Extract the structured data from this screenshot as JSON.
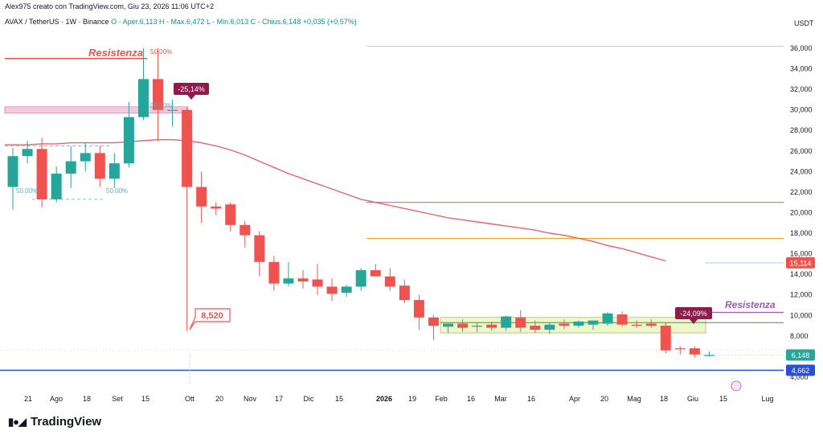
{
  "header": {
    "author": "Alex975 creato con TradingView.com, Giu 23, 2026 11:06 UTC+2",
    "symbol": "AVAX / TetherUS · 1W · Binance",
    "ohlc": "O - Aper.6,113  H - Max.6,472  L - Min.6,013  C - Chius.6,148  +0,035 (+0,57%)"
  },
  "brand": {
    "name": "TradingView",
    "logo_icon": "tradingview-logo-icon"
  },
  "colors": {
    "up": "#26a69a",
    "down": "#ef5350",
    "ma": "#e5646a",
    "orange": "#f5a623",
    "blue": "#2a4fd6",
    "purple": "#a155b9",
    "zone": "#eef7c9"
  },
  "chart_data": {
    "type": "candlestick",
    "y_unit": "USDT",
    "ylim": [
      3600,
      37000
    ],
    "y_ticks": [
      "4,000",
      "6,000",
      "8,000",
      "10,000",
      "12,000",
      "14,000",
      "16,000",
      "18,000",
      "20,000",
      "22,000",
      "24,000",
      "26,000",
      "28,000",
      "30,000",
      "32,000",
      "34,000",
      "36,000"
    ],
    "x_labels": [
      "21",
      "Ago",
      "18",
      "Set",
      "15",
      "Ott",
      "20",
      "Nov",
      "17",
      "Dic",
      "15",
      "2026",
      "19",
      "Feb",
      "16",
      "Mar",
      "16",
      "Apr",
      "20",
      "Mag",
      "18",
      "Giu",
      "15",
      "Lug"
    ],
    "bold_x_label": "2026",
    "candles": [
      [
        22.5,
        26.3,
        20.3,
        25.5
      ],
      [
        25.5,
        27.0,
        24.8,
        26.2
      ],
      [
        26.2,
        27.3,
        20.5,
        21.3
      ],
      [
        21.3,
        24.5,
        21.0,
        23.8
      ],
      [
        23.8,
        26.5,
        22.4,
        25.0
      ],
      [
        25.0,
        26.8,
        24.0,
        25.8
      ],
      [
        25.8,
        26.5,
        22.5,
        23.3
      ],
      [
        23.3,
        25.8,
        22.4,
        24.8
      ],
      [
        24.8,
        30.8,
        24.4,
        29.3
      ],
      [
        29.3,
        36.0,
        29.0,
        33.0
      ],
      [
        33.0,
        36.0,
        27.0,
        30.0
      ],
      [
        30.0,
        31.0,
        28.4,
        30.0
      ],
      [
        30.0,
        30.2,
        8.5,
        22.5
      ],
      [
        22.5,
        24.0,
        19.0,
        20.6
      ],
      [
        20.6,
        21.0,
        19.8,
        20.4
      ],
      [
        20.8,
        21.0,
        18.2,
        18.8
      ],
      [
        18.8,
        19.2,
        16.6,
        17.8
      ],
      [
        17.8,
        18.2,
        13.8,
        15.2
      ],
      [
        15.2,
        15.8,
        12.4,
        13.1
      ],
      [
        13.1,
        15.2,
        12.8,
        13.6
      ],
      [
        13.6,
        14.4,
        12.6,
        13.3
      ],
      [
        13.5,
        15.0,
        12.0,
        12.8
      ],
      [
        12.8,
        13.6,
        11.4,
        12.1
      ],
      [
        12.2,
        13.0,
        11.8,
        12.8
      ],
      [
        12.8,
        14.6,
        12.4,
        14.4
      ],
      [
        14.4,
        15.0,
        13.8,
        13.8
      ],
      [
        13.8,
        14.6,
        12.4,
        12.8
      ],
      [
        12.9,
        13.5,
        11.2,
        11.5
      ],
      [
        11.5,
        12.0,
        8.6,
        9.8
      ],
      [
        9.8,
        10.0,
        7.6,
        9.0
      ],
      [
        8.9,
        9.2,
        8.3,
        9.2
      ],
      [
        9.2,
        9.6,
        8.4,
        8.8
      ],
      [
        8.9,
        9.3,
        8.4,
        9.0
      ],
      [
        9.1,
        9.4,
        8.5,
        8.8
      ],
      [
        8.8,
        10.0,
        8.5,
        9.9
      ],
      [
        9.8,
        10.5,
        8.4,
        8.8
      ],
      [
        9.0,
        9.5,
        8.3,
        8.6
      ],
      [
        8.6,
        9.3,
        8.2,
        9.1
      ],
      [
        9.2,
        9.6,
        8.7,
        9.0
      ],
      [
        9.0,
        9.5,
        8.8,
        9.4
      ],
      [
        9.1,
        9.5,
        8.6,
        9.5
      ],
      [
        9.2,
        10.3,
        9.0,
        10.2
      ],
      [
        10.1,
        10.4,
        8.9,
        9.1
      ],
      [
        9.1,
        9.5,
        8.8,
        9.0
      ],
      [
        9.2,
        9.6,
        8.8,
        9.0
      ],
      [
        9.0,
        9.3,
        6.3,
        6.6
      ],
      [
        6.8,
        7.0,
        6.2,
        6.7
      ],
      [
        6.8,
        7.0,
        5.9,
        6.2
      ],
      [
        6.113,
        6.472,
        6.013,
        6.148
      ]
    ],
    "ma_series": [
      26.6,
      26.6,
      26.7,
      26.7,
      26.8,
      26.8,
      26.8,
      26.8,
      26.9,
      27.0,
      27.1,
      27.1,
      27.0,
      26.8,
      26.5,
      26.1,
      25.6,
      25.0,
      24.4,
      23.8,
      23.3,
      22.8,
      22.3,
      21.8,
      21.3,
      21.0,
      20.7,
      20.4,
      20.1,
      19.8,
      19.5,
      19.3,
      19.1,
      18.9,
      18.7,
      18.5,
      18.3,
      18.0,
      17.8,
      17.5,
      17.2,
      16.8,
      16.5,
      16.1,
      15.7,
      15.3
    ],
    "levels": [
      {
        "value": 36.2,
        "color": "#b9c9d6",
        "label": ""
      },
      {
        "value": 21.0,
        "color": "#e5646a",
        "label": ""
      },
      {
        "value": 17.5,
        "color": "#f5a623",
        "label": ""
      },
      {
        "value": 10.3,
        "color": "#a155b9",
        "label": ""
      },
      {
        "value": 9.3,
        "color": "#2e9e4a",
        "label": ""
      },
      {
        "value": 4.662,
        "color": "#2a4fd6",
        "label": "4,662"
      }
    ],
    "price_tags": [
      {
        "value": 15.114,
        "label": "15,114",
        "color": "#ef5350"
      },
      {
        "value": 6.148,
        "label": "6,148",
        "color": "#26a69a"
      },
      {
        "value": 4.662,
        "label": "4,662",
        "color": "#2a4fd6"
      }
    ],
    "annotations": [
      {
        "type": "text",
        "text": "Resistenza",
        "color": "#ef5350"
      },
      {
        "type": "text",
        "text": "50,00%",
        "color": "#ef5350"
      },
      {
        "type": "text",
        "text": "50,00%",
        "color": "#6aa6c2"
      },
      {
        "type": "text",
        "text": "50,00%",
        "color": "#6aa6c2"
      },
      {
        "type": "text",
        "text": "50,00%",
        "color": "#6aa6c2"
      },
      {
        "type": "badge",
        "text": "-25,14%",
        "color": "#8e1b4a"
      },
      {
        "type": "callout",
        "text": "8,520",
        "color": "#ef5350"
      },
      {
        "type": "badge",
        "text": "-24,09%",
        "color": "#8e1b4a"
      },
      {
        "type": "text",
        "text": "Resistenza",
        "color": "#a155b9"
      }
    ]
  }
}
